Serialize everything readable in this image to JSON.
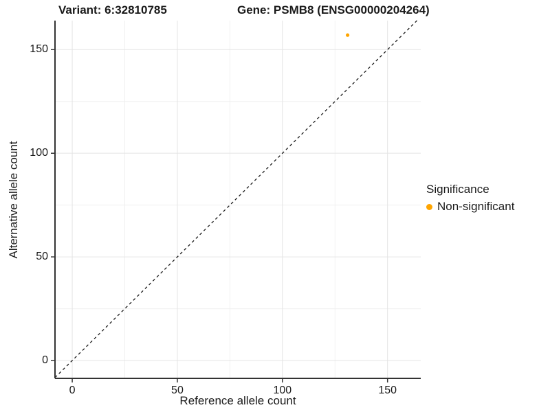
{
  "titles": {
    "left": "Variant: 6:32810785",
    "right": "Gene: PSMB8 (ENSG00000204264)"
  },
  "chart_data": {
    "type": "scatter",
    "title": "Variant: 6:32810785   Gene: PSMB8 (ENSG00000204264)",
    "xlabel": "Reference allele count",
    "ylabel": "Alternative allele count",
    "xlim": [
      -8.2,
      165.8
    ],
    "ylim": [
      -8.6,
      164.0
    ],
    "x_ticks": [
      0,
      50,
      100,
      150
    ],
    "y_ticks": [
      0,
      50,
      100,
      150
    ],
    "x_minor_ticks": [
      25,
      75,
      125
    ],
    "y_minor_ticks": [
      25,
      75,
      125
    ],
    "grid": true,
    "reference_line": {
      "type": "identity",
      "style": "dashed",
      "color": "#1a1a1a"
    },
    "series": [
      {
        "name": "Non-significant",
        "color": "#FFA500",
        "points": [
          {
            "x": 131,
            "y": 157
          }
        ]
      }
    ],
    "legend": {
      "title": "Significance",
      "position": "right",
      "items": [
        {
          "label": "Non-significant",
          "color": "#FFA500"
        }
      ]
    }
  },
  "colors": {
    "background": "#FFFFFF",
    "grid_major": "#E4E4E4",
    "grid_minor": "#F0F0F0",
    "axis": "#333333",
    "text": "#1a1a1a"
  }
}
